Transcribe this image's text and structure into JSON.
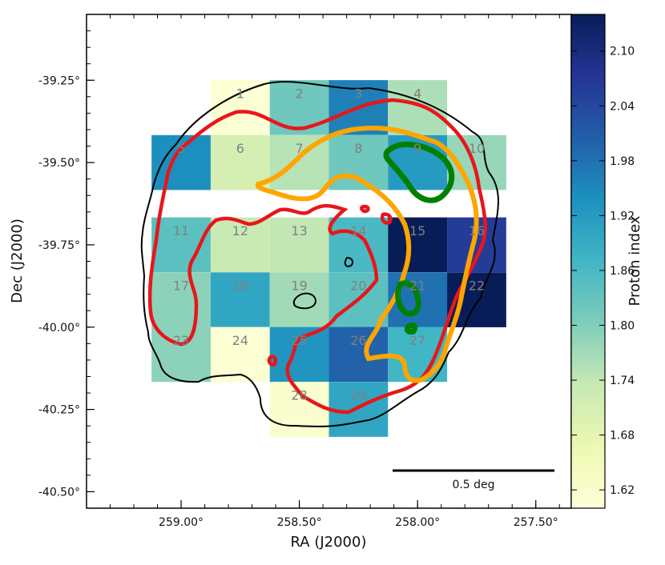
{
  "chart_data": {
    "type": "heatmap",
    "xlabel": "RA (J2000)",
    "ylabel": "Dec (J2000)",
    "xlim": [
      259.4,
      257.35
    ],
    "ylim": [
      -40.55,
      -39.05
    ],
    "x_ticks": [
      {
        "value": 259.0,
        "label": "259.00°"
      },
      {
        "value": 258.5,
        "label": "258.50°"
      },
      {
        "value": 258.0,
        "label": "258.00°"
      },
      {
        "value": 257.5,
        "label": "257.50°"
      }
    ],
    "y_ticks": [
      {
        "value": -39.25,
        "label": "-39.25°"
      },
      {
        "value": -39.5,
        "label": "-39.50°"
      },
      {
        "value": -39.75,
        "label": "-39.75°"
      },
      {
        "value": -40.0,
        "label": "-40.00°"
      },
      {
        "value": -40.25,
        "label": "-40.25°"
      },
      {
        "value": -40.5,
        "label": "-40.50°"
      }
    ],
    "grid": false,
    "colorbar": {
      "label": "Proton index",
      "range": [
        1.6,
        2.14
      ],
      "ticks": [
        "1.62",
        "1.68",
        "1.74",
        "1.80",
        "1.86",
        "1.92",
        "1.98",
        "2.04",
        "2.10"
      ],
      "colors": [
        "#ffffd9",
        "#edf8b1",
        "#c7e9b4",
        "#7fcdbb",
        "#41b6c4",
        "#1d91c0",
        "#225ea8",
        "#253494",
        "#081d58"
      ]
    },
    "cell_size_deg": 0.25,
    "cells": [
      {
        "label": "1",
        "ra": 258.75,
        "dec": -39.333,
        "index": 1.61
      },
      {
        "label": "2",
        "ra": 258.5,
        "dec": -39.333,
        "index": 1.82
      },
      {
        "label": "3",
        "ra": 258.25,
        "dec": -39.333,
        "index": 1.96
      },
      {
        "label": "4",
        "ra": 258.0,
        "dec": -39.333,
        "index": 1.76
      },
      {
        "label": "5",
        "ra": 259.0,
        "dec": -39.5,
        "index": 1.94
      },
      {
        "label": "6",
        "ra": 258.75,
        "dec": -39.5,
        "index": 1.71
      },
      {
        "label": "7",
        "ra": 258.5,
        "dec": -39.5,
        "index": 1.75
      },
      {
        "label": "8",
        "ra": 258.25,
        "dec": -39.5,
        "index": 1.82
      },
      {
        "label": "9",
        "ra": 258.0,
        "dec": -39.5,
        "index": 1.92
      },
      {
        "label": "10",
        "ra": 257.75,
        "dec": -39.5,
        "index": 1.78
      },
      {
        "label": "11",
        "ra": 259.0,
        "dec": -39.75,
        "index": 1.84
      },
      {
        "label": "12",
        "ra": 258.75,
        "dec": -39.75,
        "index": 1.73
      },
      {
        "label": "13",
        "ra": 258.5,
        "dec": -39.75,
        "index": 1.74
      },
      {
        "label": "14",
        "ra": 258.25,
        "dec": -39.75,
        "index": 1.86
      },
      {
        "label": "15",
        "ra": 258.0,
        "dec": -39.75,
        "index": 2.14
      },
      {
        "label": "16",
        "ra": 257.75,
        "dec": -39.75,
        "index": 2.06
      },
      {
        "label": "17",
        "ra": 259.0,
        "dec": -39.917,
        "index": 1.79
      },
      {
        "label": "18",
        "ra": 258.75,
        "dec": -39.917,
        "index": 1.9
      },
      {
        "label": "19",
        "ra": 258.5,
        "dec": -39.917,
        "index": 1.77
      },
      {
        "label": "20",
        "ra": 258.25,
        "dec": -39.917,
        "index": 1.84
      },
      {
        "label": "21",
        "ra": 258.0,
        "dec": -39.917,
        "index": 1.98
      },
      {
        "label": "22",
        "ra": 257.75,
        "dec": -39.917,
        "index": 2.14
      },
      {
        "label": "23",
        "ra": 259.0,
        "dec": -40.083,
        "index": 1.79
      },
      {
        "label": "24",
        "ra": 258.75,
        "dec": -40.083,
        "index": 1.61
      },
      {
        "label": "25",
        "ra": 258.5,
        "dec": -40.083,
        "index": 1.93
      },
      {
        "label": "26",
        "ra": 258.25,
        "dec": -40.083,
        "index": 2.0
      },
      {
        "label": "27",
        "ra": 258.0,
        "dec": -40.083,
        "index": 1.87
      },
      {
        "label": "28",
        "ra": 258.5,
        "dec": -40.25,
        "index": 1.62
      },
      {
        "label": "29",
        "ra": 258.25,
        "dec": -40.25,
        "index": 1.9
      }
    ],
    "scale_bar_label": "0.5 deg",
    "contour_colors": {
      "outer": "#000000",
      "middle": "#e8161b",
      "inner": "#ffa500",
      "peak": "#008000"
    }
  }
}
